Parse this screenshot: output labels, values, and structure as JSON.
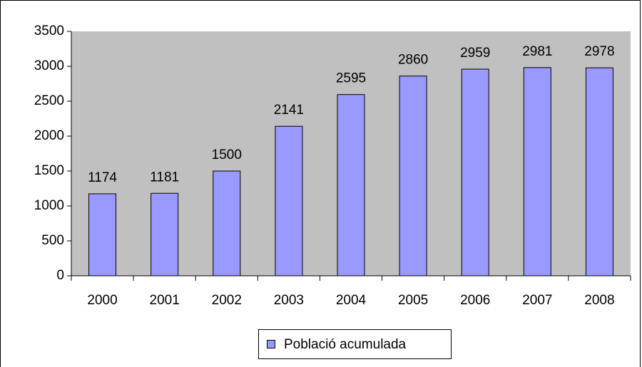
{
  "chart_data": {
    "type": "bar",
    "categories": [
      "2000",
      "2001",
      "2002",
      "2003",
      "2004",
      "2005",
      "2006",
      "2007",
      "2008"
    ],
    "series": [
      {
        "name": "Població acumulada",
        "color": "#9999ff",
        "values": [
          1174,
          1181,
          1500,
          2141,
          2595,
          2860,
          2959,
          2981,
          2978
        ]
      }
    ],
    "ylim": [
      0,
      3500
    ],
    "yticks": [
      0,
      500,
      1000,
      1500,
      2000,
      2500,
      3000,
      3500
    ],
    "grid": false,
    "legend": "bottom",
    "plot_background": "#c0c0c0"
  }
}
